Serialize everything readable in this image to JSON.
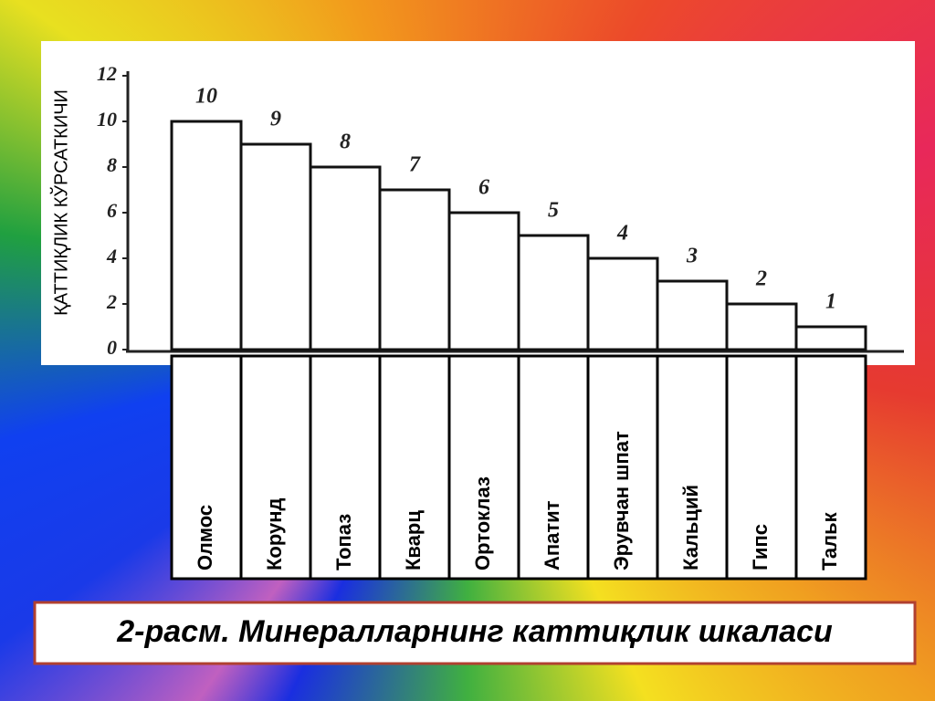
{
  "chart_data": {
    "type": "bar",
    "title": "2-расм. Минералларнинг каттиқлик шкаласи",
    "y_label": "ҚАТТИҚЛИК КЎРСАТКИЧИ",
    "categories": [
      "Олмос",
      "Корунд",
      "Топаз",
      "Кварц",
      "Ортоклаз",
      "Апатит",
      "Эрувчан шпат",
      "Кальций",
      "Гипс",
      "Тальк"
    ],
    "values": [
      10,
      9,
      8,
      7,
      6,
      5,
      4,
      3,
      2,
      1
    ],
    "color": "#ffffff",
    "ylim": [
      0,
      12
    ],
    "yticks": [
      0,
      2,
      4,
      6,
      8,
      10,
      12
    ],
    "grid": false
  }
}
